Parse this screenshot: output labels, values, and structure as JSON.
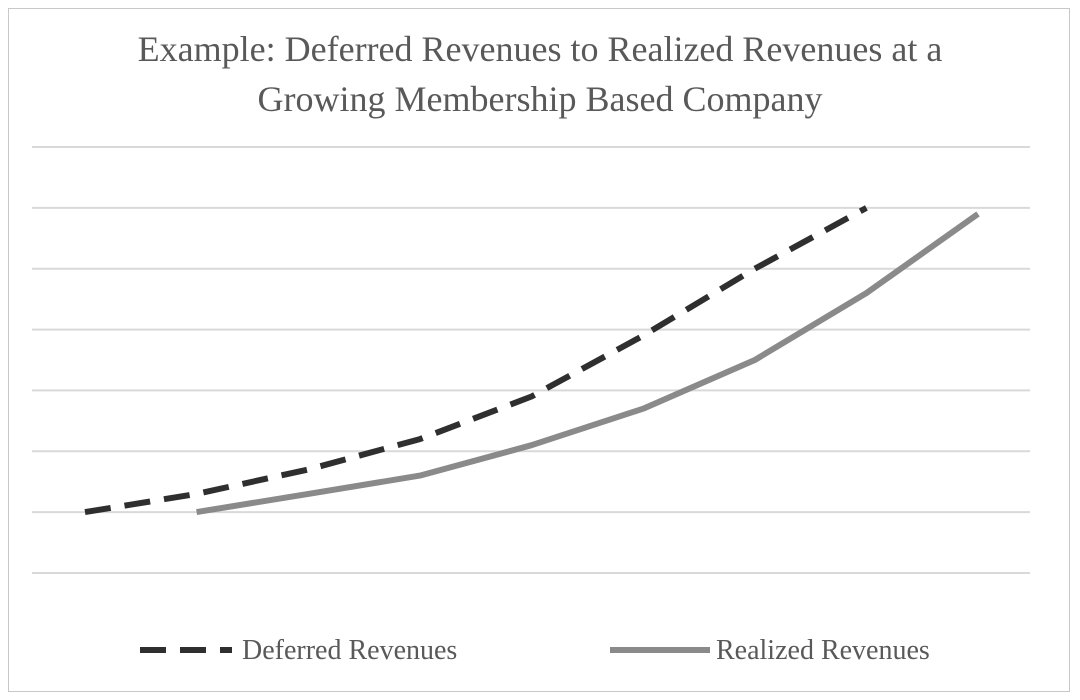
{
  "chart_data": {
    "type": "line",
    "title_lines": [
      "Example: Deferred Revenues to Realized Revenues at a",
      "Growing Membership Based Company"
    ],
    "xlabel": "",
    "ylabel": "",
    "x": [
      0,
      1,
      2,
      3,
      4,
      5,
      6,
      7,
      8
    ],
    "ylim": [
      0,
      7
    ],
    "grid": true,
    "legend_position": "bottom",
    "series": [
      {
        "name": "Deferred Revenues",
        "style": "dashed",
        "color": "#2f2f2f",
        "values": [
          1.0,
          1.3,
          1.7,
          2.2,
          2.9,
          3.9,
          5.0,
          6.0,
          null
        ]
      },
      {
        "name": "Realized Revenues",
        "style": "solid",
        "color": "#8a8a8a",
        "values": [
          null,
          1.0,
          1.3,
          1.6,
          2.1,
          2.7,
          3.5,
          4.6,
          5.9
        ]
      }
    ]
  }
}
